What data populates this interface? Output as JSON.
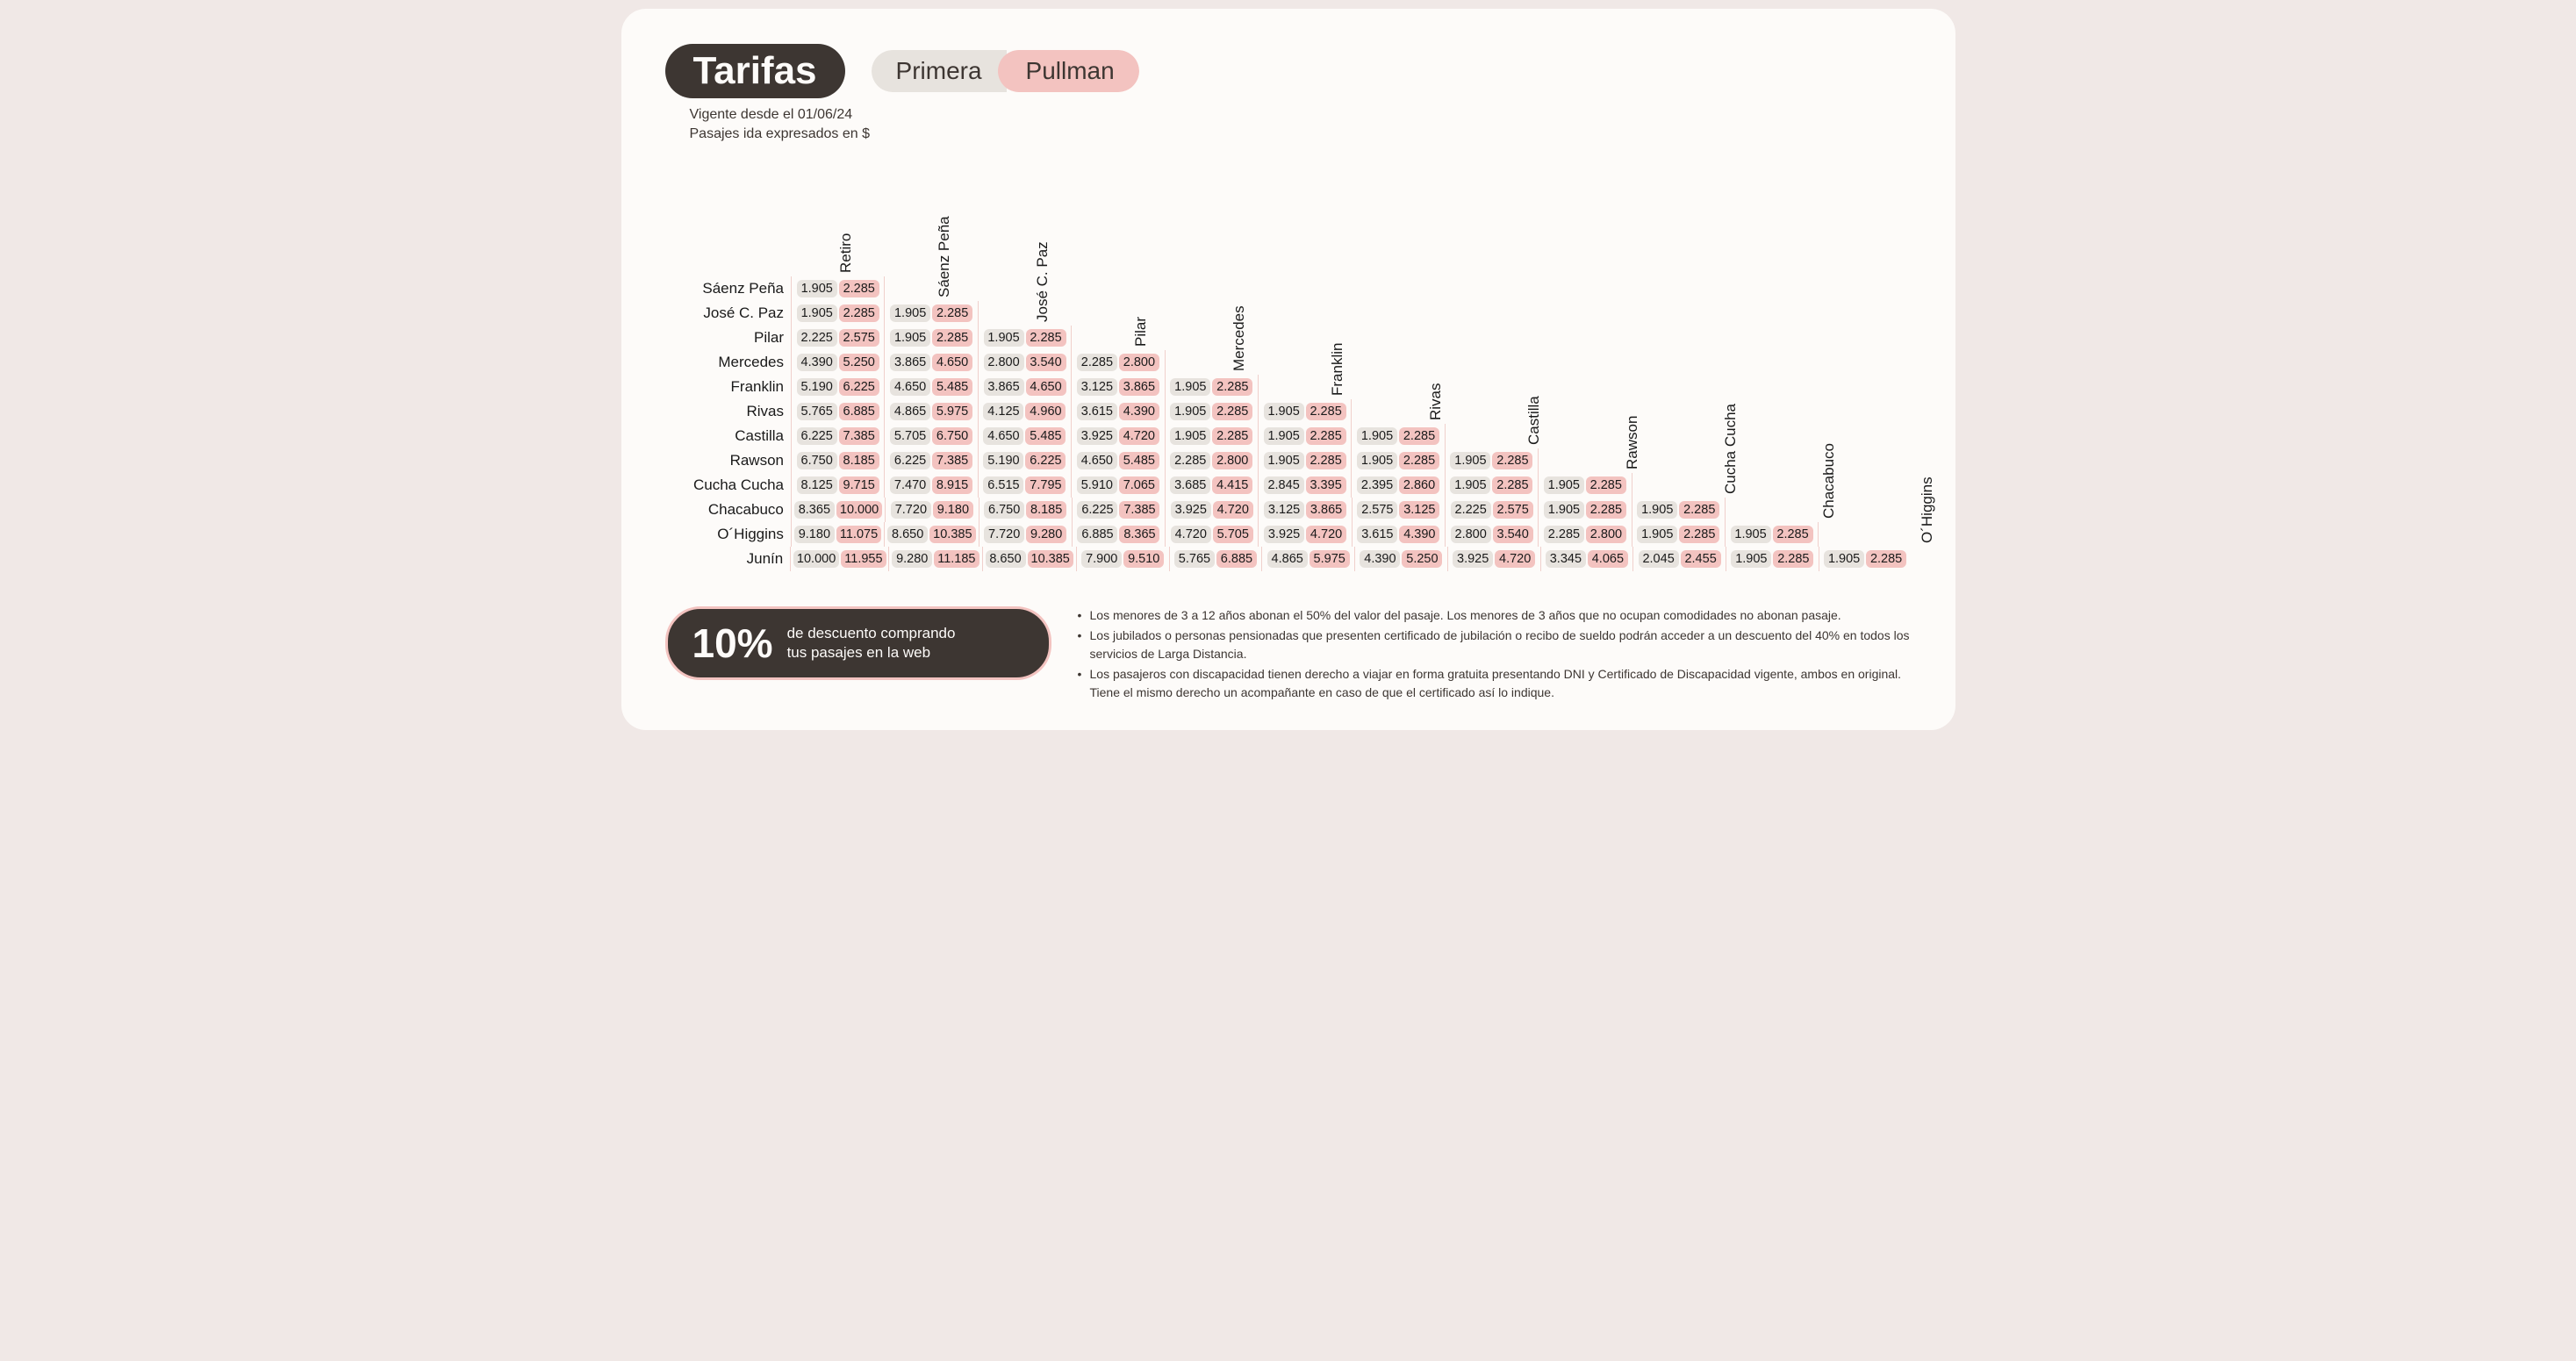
{
  "title": "Tarifas",
  "class_primera": "Primera",
  "class_pullman": "Pullman",
  "sub1": "Vigente desde el 01/06/24",
  "sub2": "Pasajes ida expresados en $",
  "discount_pct": "10%",
  "discount_text1": "de descuento comprando",
  "discount_text2": "tus pasajes en la web",
  "notes": [
    "Los menores de 3 a 12 años abonan el 50% del valor del pasaje. Los menores de 3 años que no ocupan comodidades no abonan pasaje.",
    "Los jubilados o personas pensionadas que presenten certificado de jubilación o recibo de sueldo podrán acceder a un descuento del 40% en todos los servicios de Larga Distancia.",
    "Los pasajeros con discapacidad tienen derecho a viajar en forma gratuita presentando DNI y Certificado de Discapacidad vigente, ambos en original. Tiene el mismo derecho un acompañante en caso de que el certificado así lo indique."
  ],
  "columns": [
    "Retiro",
    "Sáenz Peña",
    "José C. Paz",
    "Pilar",
    "Mercedes",
    "Franklin",
    "Rivas",
    "Castilla",
    "Rawson",
    "Cucha Cucha",
    "Chacabuco",
    "O´Higgins"
  ],
  "rows": [
    {
      "label": "Sáenz Peña",
      "cells": [
        [
          "1.905",
          "2.285"
        ]
      ]
    },
    {
      "label": "José C. Paz",
      "cells": [
        [
          "1.905",
          "2.285"
        ],
        [
          "1.905",
          "2.285"
        ]
      ]
    },
    {
      "label": "Pilar",
      "cells": [
        [
          "2.225",
          "2.575"
        ],
        [
          "1.905",
          "2.285"
        ],
        [
          "1.905",
          "2.285"
        ]
      ]
    },
    {
      "label": "Mercedes",
      "cells": [
        [
          "4.390",
          "5.250"
        ],
        [
          "3.865",
          "4.650"
        ],
        [
          "2.800",
          "3.540"
        ],
        [
          "2.285",
          "2.800"
        ]
      ]
    },
    {
      "label": "Franklin",
      "cells": [
        [
          "5.190",
          "6.225"
        ],
        [
          "4.650",
          "5.485"
        ],
        [
          "3.865",
          "4.650"
        ],
        [
          "3.125",
          "3.865"
        ],
        [
          "1.905",
          "2.285"
        ]
      ]
    },
    {
      "label": "Rivas",
      "cells": [
        [
          "5.765",
          "6.885"
        ],
        [
          "4.865",
          "5.975"
        ],
        [
          "4.125",
          "4.960"
        ],
        [
          "3.615",
          "4.390"
        ],
        [
          "1.905",
          "2.285"
        ],
        [
          "1.905",
          "2.285"
        ]
      ]
    },
    {
      "label": "Castilla",
      "cells": [
        [
          "6.225",
          "7.385"
        ],
        [
          "5.705",
          "6.750"
        ],
        [
          "4.650",
          "5.485"
        ],
        [
          "3.925",
          "4.720"
        ],
        [
          "1.905",
          "2.285"
        ],
        [
          "1.905",
          "2.285"
        ],
        [
          "1.905",
          "2.285"
        ]
      ]
    },
    {
      "label": "Rawson",
      "cells": [
        [
          "6.750",
          "8.185"
        ],
        [
          "6.225",
          "7.385"
        ],
        [
          "5.190",
          "6.225"
        ],
        [
          "4.650",
          "5.485"
        ],
        [
          "2.285",
          "2.800"
        ],
        [
          "1.905",
          "2.285"
        ],
        [
          "1.905",
          "2.285"
        ],
        [
          "1.905",
          "2.285"
        ]
      ]
    },
    {
      "label": "Cucha Cucha",
      "cells": [
        [
          "8.125",
          "9.715"
        ],
        [
          "7.470",
          "8.915"
        ],
        [
          "6.515",
          "7.795"
        ],
        [
          "5.910",
          "7.065"
        ],
        [
          "3.685",
          "4.415"
        ],
        [
          "2.845",
          "3.395"
        ],
        [
          "2.395",
          "2.860"
        ],
        [
          "1.905",
          "2.285"
        ],
        [
          "1.905",
          "2.285"
        ]
      ]
    },
    {
      "label": "Chacabuco",
      "cells": [
        [
          "8.365",
          "10.000"
        ],
        [
          "7.720",
          "9.180"
        ],
        [
          "6.750",
          "8.185"
        ],
        [
          "6.225",
          "7.385"
        ],
        [
          "3.925",
          "4.720"
        ],
        [
          "3.125",
          "3.865"
        ],
        [
          "2.575",
          "3.125"
        ],
        [
          "2.225",
          "2.575"
        ],
        [
          "1.905",
          "2.285"
        ],
        [
          "1.905",
          "2.285"
        ]
      ]
    },
    {
      "label": "O´Higgins",
      "cells": [
        [
          "9.180",
          "11.075"
        ],
        [
          "8.650",
          "10.385"
        ],
        [
          "7.720",
          "9.280"
        ],
        [
          "6.885",
          "8.365"
        ],
        [
          "4.720",
          "5.705"
        ],
        [
          "3.925",
          "4.720"
        ],
        [
          "3.615",
          "4.390"
        ],
        [
          "2.800",
          "3.540"
        ],
        [
          "2.285",
          "2.800"
        ],
        [
          "1.905",
          "2.285"
        ],
        [
          "1.905",
          "2.285"
        ]
      ]
    },
    {
      "label": "Junín",
      "cells": [
        [
          "10.000",
          "11.955"
        ],
        [
          "9.280",
          "11.185"
        ],
        [
          "8.650",
          "10.385"
        ],
        [
          "7.900",
          "9.510"
        ],
        [
          "5.765",
          "6.885"
        ],
        [
          "4.865",
          "5.975"
        ],
        [
          "4.390",
          "5.250"
        ],
        [
          "3.925",
          "4.720"
        ],
        [
          "3.345",
          "4.065"
        ],
        [
          "2.045",
          "2.455"
        ],
        [
          "1.905",
          "2.285"
        ],
        [
          "1.905",
          "2.285"
        ]
      ]
    }
  ],
  "colors": {
    "card_bg": "#fdfbf9",
    "title_bg": "#3d3632",
    "primera_bg": "#e7e3de",
    "pullman_bg": "#f3c3c0",
    "divider": "#f0d0cc"
  }
}
